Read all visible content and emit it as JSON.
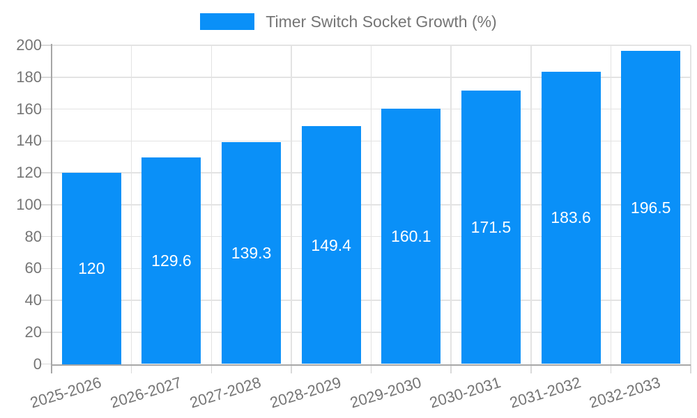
{
  "chart_data": {
    "type": "bar",
    "legend": "Timer Switch Socket Growth (%)",
    "legend_position": "top-center",
    "categories": [
      "2025-2026",
      "2026-2027",
      "2027-2028",
      "2028-2029",
      "2029-2030",
      "2030-2031",
      "2031-2032",
      "2032-2033"
    ],
    "values": [
      120,
      129.6,
      139.3,
      149.4,
      160.1,
      171.5,
      183.6,
      196.5
    ],
    "xlabel": "",
    "ylabel": "",
    "ylim": [
      0,
      200
    ],
    "ytick_step": 20,
    "grid": "both",
    "value_labels": "inside-center",
    "colors": {
      "bar": "#0A90F8",
      "grid": "#E3E3E3",
      "axis": "#A6A6A6",
      "tick": "#D9D9D9",
      "text": "#757575",
      "value_label": "#FFFFFF"
    }
  }
}
